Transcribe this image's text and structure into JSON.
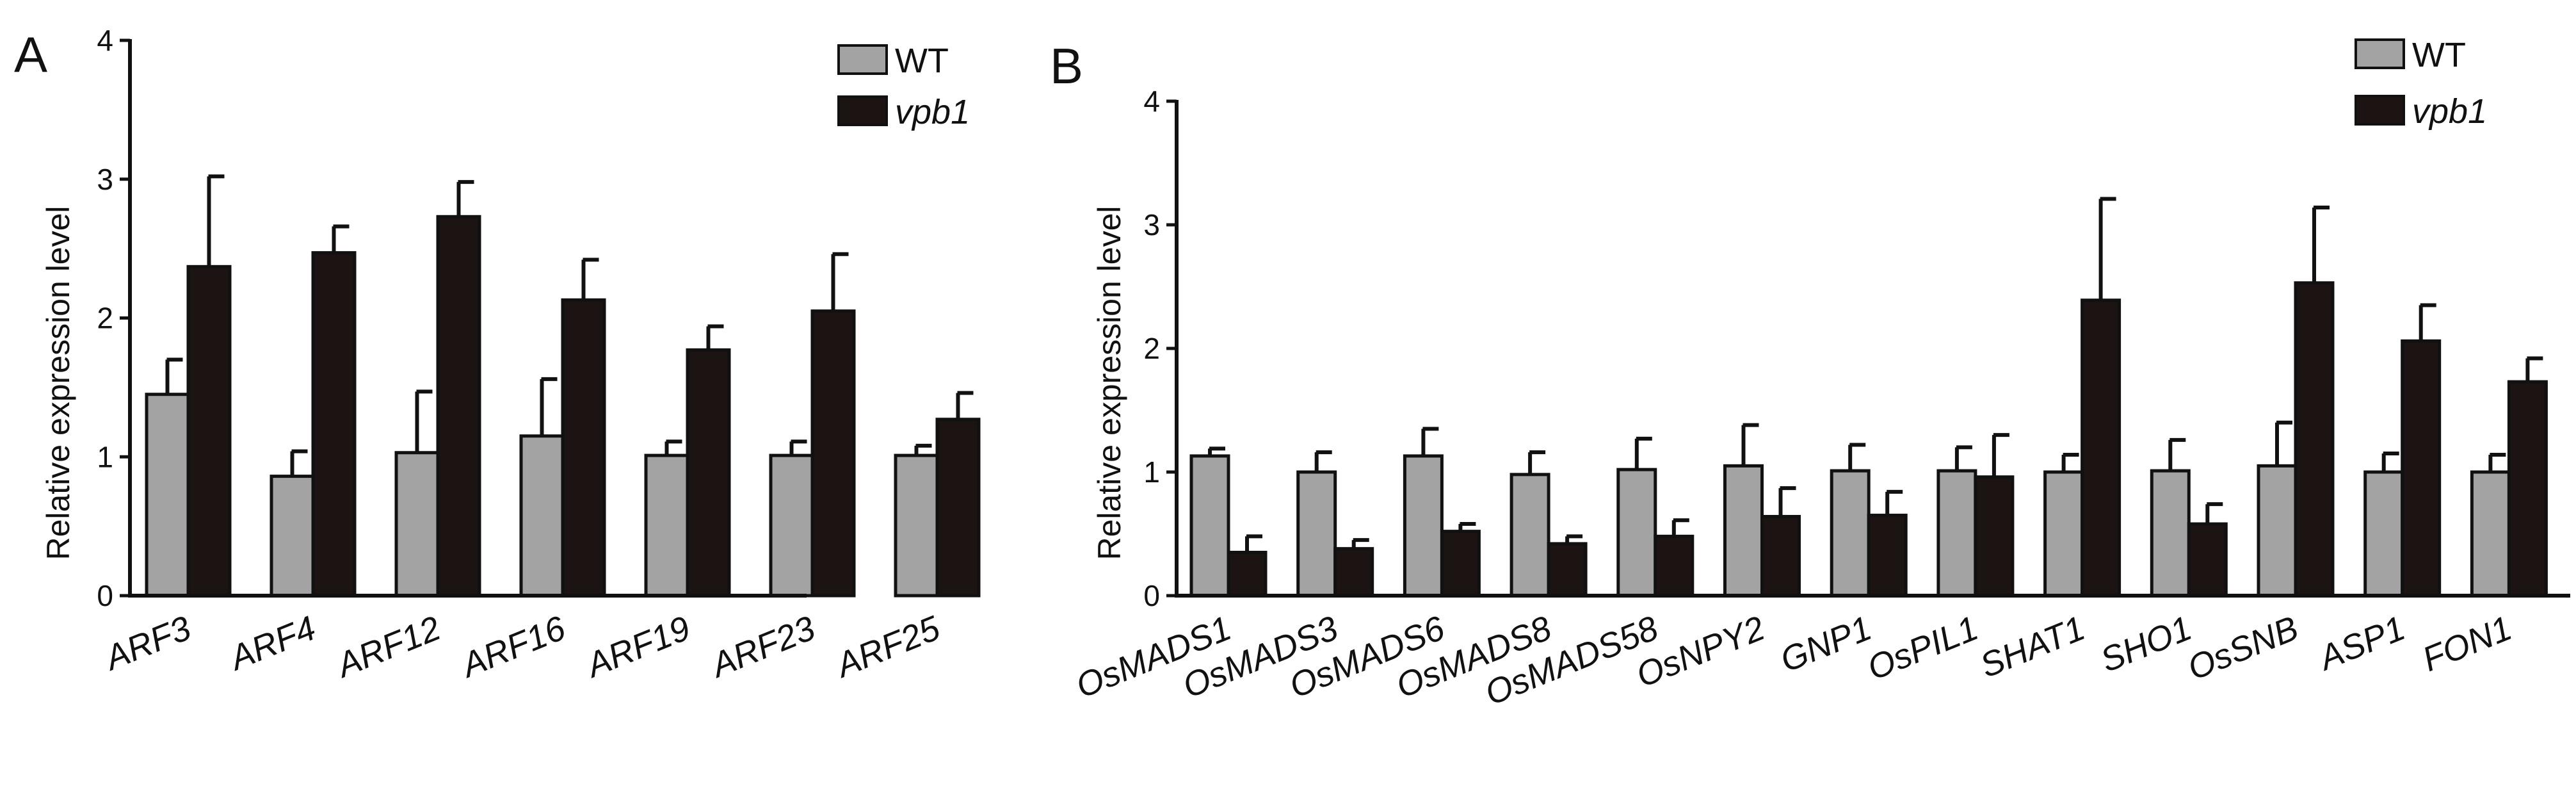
{
  "chart_data": [
    {
      "type": "bar",
      "panel": "A",
      "ylabel": "Relative expression level",
      "xlabel": "",
      "ylim": [
        0,
        4
      ],
      "yticks": [
        0,
        1,
        2,
        3,
        4
      ],
      "legend": "top-right",
      "categories": [
        "ARF3",
        "ARF4",
        "ARF12",
        "ARF16",
        "ARF19",
        "ARF23",
        "ARF25"
      ],
      "series": [
        {
          "name": "WT",
          "color": "#a3a3a3",
          "values": [
            1.45,
            0.86,
            1.03,
            1.15,
            1.01,
            1.01,
            1.01
          ],
          "errors": [
            0.25,
            0.18,
            0.44,
            0.41,
            0.1,
            0.1,
            0.07
          ]
        },
        {
          "name": "vpb1",
          "color": "#1c1313",
          "values": [
            2.37,
            2.47,
            2.73,
            2.13,
            1.77,
            2.05,
            1.27
          ],
          "errors": [
            0.65,
            0.19,
            0.25,
            0.29,
            0.17,
            0.41,
            0.19
          ]
        }
      ]
    },
    {
      "type": "bar",
      "panel": "B",
      "ylabel": "Relative expression level",
      "xlabel": "",
      "ylim": [
        0,
        4
      ],
      "yticks": [
        0,
        1,
        2,
        3,
        4
      ],
      "legend": "top-right",
      "categories": [
        "OsMADS1",
        "OsMADS3",
        "OsMADS6",
        "OsMADS8",
        "OsMADS58",
        "OsNPY2",
        "GNP1",
        "OsPIL1",
        "SHAT1",
        "SHO1",
        "OsSNB",
        "ASP1",
        "FON1"
      ],
      "series": [
        {
          "name": "WT",
          "color": "#a3a3a3",
          "values": [
            1.13,
            1.0,
            1.13,
            0.98,
            1.02,
            1.05,
            1.01,
            1.01,
            1.0,
            1.01,
            1.05,
            1.0,
            1.0
          ],
          "errors": [
            0.06,
            0.16,
            0.22,
            0.18,
            0.25,
            0.33,
            0.21,
            0.19,
            0.14,
            0.25,
            0.35,
            0.15,
            0.14
          ]
        },
        {
          "name": "vpb1",
          "color": "#1c1313",
          "values": [
            0.35,
            0.38,
            0.52,
            0.42,
            0.48,
            0.64,
            0.65,
            0.96,
            2.39,
            0.58,
            2.53,
            2.06,
            1.73
          ],
          "errors": [
            0.13,
            0.07,
            0.06,
            0.06,
            0.13,
            0.23,
            0.19,
            0.34,
            0.82,
            0.16,
            0.61,
            0.29,
            0.19
          ]
        }
      ]
    }
  ]
}
